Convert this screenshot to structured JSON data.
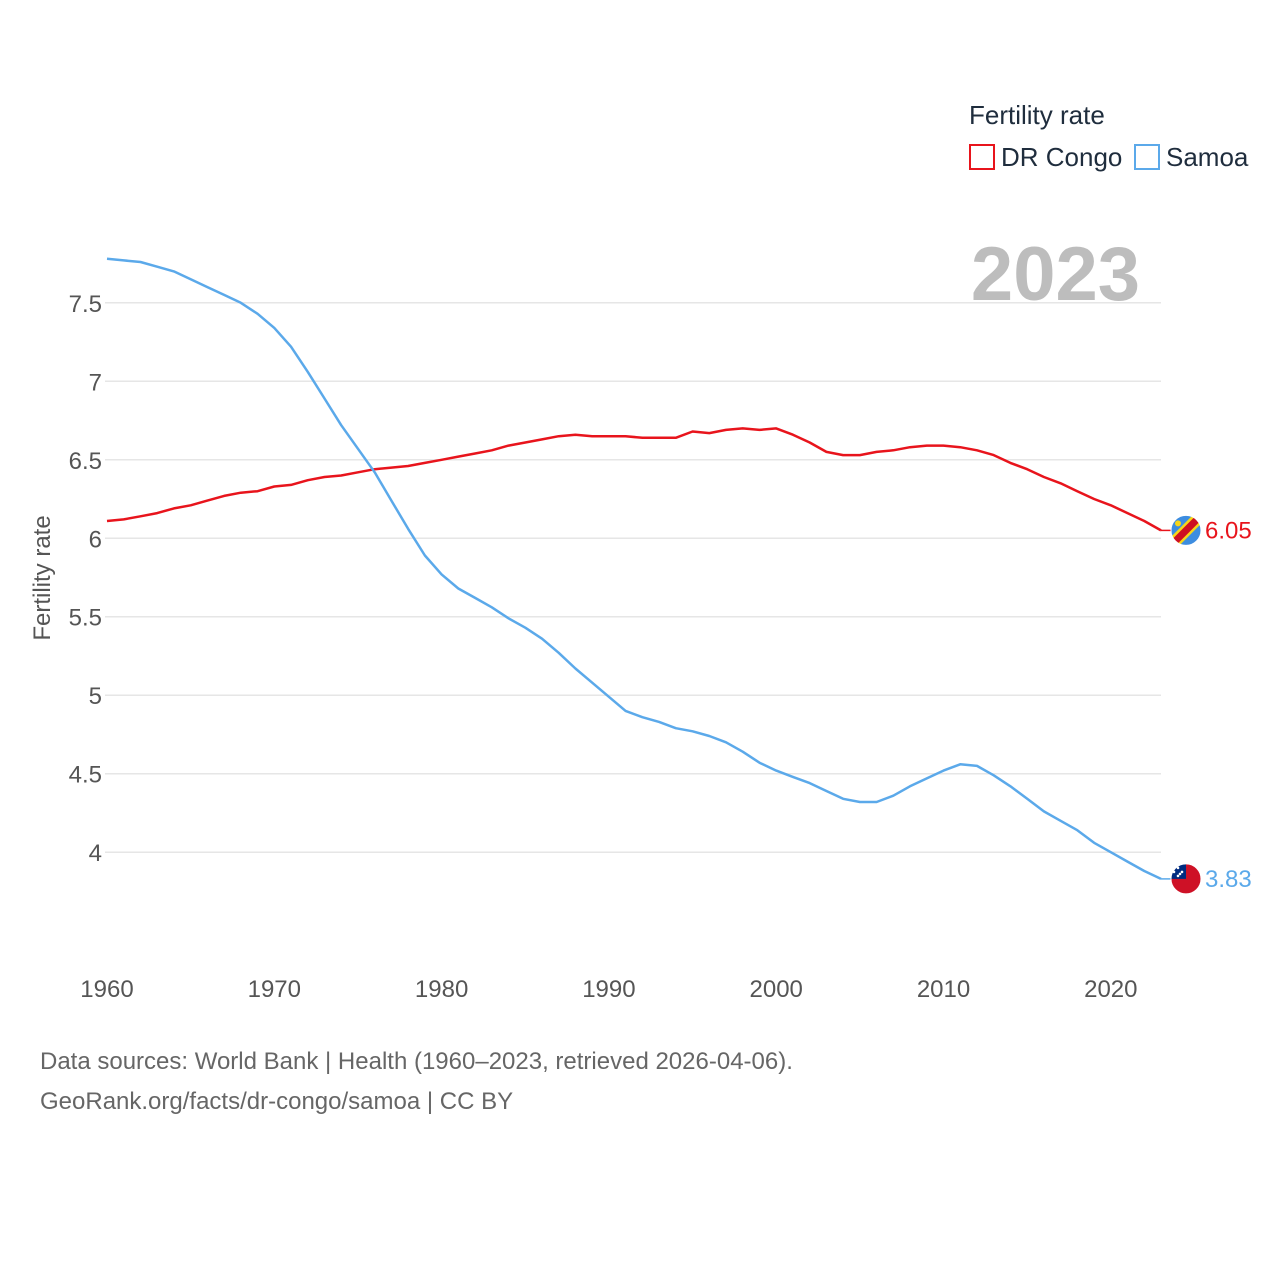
{
  "chart_data": {
    "type": "line",
    "title": "Fertility rate",
    "year_label": "2023",
    "xlabel": "",
    "ylabel": "Fertility rate",
    "xlim": [
      1960,
      2023
    ],
    "ylim": [
      3.6,
      7.9
    ],
    "x_ticks": [
      1960,
      1970,
      1980,
      1990,
      2000,
      2010,
      2020
    ],
    "y_ticks": [
      4,
      4.5,
      5,
      5.5,
      6,
      6.5,
      7,
      7.5
    ],
    "y_tick_labels": [
      "4",
      "4.5",
      "5",
      "5.5",
      "6",
      "6.5",
      "7",
      "7.5"
    ],
    "grid": true,
    "legend_position": "top-right",
    "series": [
      {
        "name": "DR Congo",
        "color": "#e8141c",
        "end_label": "6.05",
        "flag_icon": "dr-congo-flag-icon",
        "points": [
          [
            1960,
            6.11
          ],
          [
            1961,
            6.12
          ],
          [
            1962,
            6.14
          ],
          [
            1963,
            6.16
          ],
          [
            1964,
            6.19
          ],
          [
            1965,
            6.21
          ],
          [
            1966,
            6.24
          ],
          [
            1967,
            6.27
          ],
          [
            1968,
            6.29
          ],
          [
            1969,
            6.3
          ],
          [
            1970,
            6.33
          ],
          [
            1971,
            6.34
          ],
          [
            1972,
            6.37
          ],
          [
            1973,
            6.39
          ],
          [
            1974,
            6.4
          ],
          [
            1975,
            6.42
          ],
          [
            1976,
            6.44
          ],
          [
            1977,
            6.45
          ],
          [
            1978,
            6.46
          ],
          [
            1979,
            6.48
          ],
          [
            1980,
            6.5
          ],
          [
            1981,
            6.52
          ],
          [
            1982,
            6.54
          ],
          [
            1983,
            6.56
          ],
          [
            1984,
            6.59
          ],
          [
            1985,
            6.61
          ],
          [
            1986,
            6.63
          ],
          [
            1987,
            6.65
          ],
          [
            1988,
            6.66
          ],
          [
            1989,
            6.65
          ],
          [
            1990,
            6.65
          ],
          [
            1991,
            6.65
          ],
          [
            1992,
            6.64
          ],
          [
            1993,
            6.64
          ],
          [
            1994,
            6.64
          ],
          [
            1995,
            6.68
          ],
          [
            1996,
            6.67
          ],
          [
            1997,
            6.69
          ],
          [
            1998,
            6.7
          ],
          [
            1999,
            6.69
          ],
          [
            2000,
            6.7
          ],
          [
            2001,
            6.66
          ],
          [
            2002,
            6.61
          ],
          [
            2003,
            6.55
          ],
          [
            2004,
            6.53
          ],
          [
            2005,
            6.53
          ],
          [
            2006,
            6.55
          ],
          [
            2007,
            6.56
          ],
          [
            2008,
            6.58
          ],
          [
            2009,
            6.59
          ],
          [
            2010,
            6.59
          ],
          [
            2011,
            6.58
          ],
          [
            2012,
            6.56
          ],
          [
            2013,
            6.53
          ],
          [
            2014,
            6.48
          ],
          [
            2015,
            6.44
          ],
          [
            2016,
            6.39
          ],
          [
            2017,
            6.35
          ],
          [
            2018,
            6.3
          ],
          [
            2019,
            6.25
          ],
          [
            2020,
            6.21
          ],
          [
            2021,
            6.16
          ],
          [
            2022,
            6.11
          ],
          [
            2023,
            6.05
          ]
        ]
      },
      {
        "name": "Samoa",
        "color": "#5ba9ea",
        "end_label": "3.83",
        "flag_icon": "samoa-flag-icon",
        "points": [
          [
            1960,
            7.78
          ],
          [
            1961,
            7.77
          ],
          [
            1962,
            7.76
          ],
          [
            1963,
            7.73
          ],
          [
            1964,
            7.7
          ],
          [
            1965,
            7.65
          ],
          [
            1966,
            7.6
          ],
          [
            1967,
            7.55
          ],
          [
            1968,
            7.5
          ],
          [
            1969,
            7.43
          ],
          [
            1970,
            7.34
          ],
          [
            1971,
            7.22
          ],
          [
            1972,
            7.06
          ],
          [
            1973,
            6.89
          ],
          [
            1974,
            6.72
          ],
          [
            1975,
            6.57
          ],
          [
            1976,
            6.42
          ],
          [
            1977,
            6.24
          ],
          [
            1978,
            6.06
          ],
          [
            1979,
            5.89
          ],
          [
            1980,
            5.77
          ],
          [
            1981,
            5.68
          ],
          [
            1982,
            5.62
          ],
          [
            1983,
            5.56
          ],
          [
            1984,
            5.49
          ],
          [
            1985,
            5.43
          ],
          [
            1986,
            5.36
          ],
          [
            1987,
            5.27
          ],
          [
            1988,
            5.17
          ],
          [
            1989,
            5.08
          ],
          [
            1990,
            4.99
          ],
          [
            1991,
            4.9
          ],
          [
            1992,
            4.86
          ],
          [
            1993,
            4.83
          ],
          [
            1994,
            4.79
          ],
          [
            1995,
            4.77
          ],
          [
            1996,
            4.74
          ],
          [
            1997,
            4.7
          ],
          [
            1998,
            4.64
          ],
          [
            1999,
            4.57
          ],
          [
            2000,
            4.52
          ],
          [
            2001,
            4.48
          ],
          [
            2002,
            4.44
          ],
          [
            2003,
            4.39
          ],
          [
            2004,
            4.34
          ],
          [
            2005,
            4.32
          ],
          [
            2006,
            4.32
          ],
          [
            2007,
            4.36
          ],
          [
            2008,
            4.42
          ],
          [
            2009,
            4.47
          ],
          [
            2010,
            4.52
          ],
          [
            2011,
            4.56
          ],
          [
            2012,
            4.55
          ],
          [
            2013,
            4.49
          ],
          [
            2014,
            4.42
          ],
          [
            2015,
            4.34
          ],
          [
            2016,
            4.26
          ],
          [
            2017,
            4.2
          ],
          [
            2018,
            4.14
          ],
          [
            2019,
            4.06
          ],
          [
            2020,
            4.0
          ],
          [
            2021,
            3.94
          ],
          [
            2022,
            3.88
          ],
          [
            2023,
            3.83
          ]
        ]
      }
    ]
  },
  "source": {
    "line1": "Data sources: World Bank | Health (1960–2023, retrieved 2026-04-06).",
    "line2": "GeoRank.org/facts/dr-congo/samoa | CC BY"
  }
}
